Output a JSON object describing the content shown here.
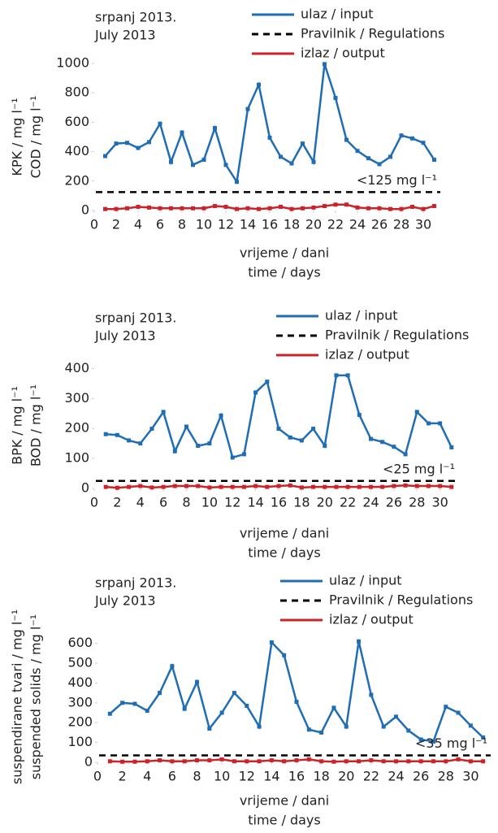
{
  "chart_data": [
    {
      "type": "line",
      "title": [
        "srpanj 2013.",
        "July 2013"
      ],
      "ylabel": [
        "KPK / mg l⁻¹",
        "COD / mg l⁻¹"
      ],
      "xlabel": [
        "vrijeme / dani",
        "time / days"
      ],
      "x": [
        1,
        2,
        3,
        4,
        5,
        6,
        7,
        8,
        9,
        10,
        11,
        12,
        13,
        14,
        15,
        16,
        17,
        18,
        19,
        20,
        21,
        22,
        23,
        24,
        25,
        26,
        27,
        28,
        29,
        30,
        31
      ],
      "xlim": [
        0,
        32
      ],
      "xticks": [
        0,
        2,
        4,
        6,
        8,
        10,
        12,
        14,
        16,
        18,
        20,
        22,
        24,
        26,
        28,
        30
      ],
      "ylim": [
        0,
        1000
      ],
      "yticks": [
        0,
        200,
        400,
        600,
        800,
        1000
      ],
      "series": [
        {
          "name": "ulaz / input",
          "color": "#1f6db5",
          "values": [
            370,
            455,
            460,
            425,
            465,
            590,
            330,
            530,
            310,
            345,
            560,
            310,
            195,
            690,
            855,
            495,
            365,
            320,
            455,
            330,
            995,
            765,
            480,
            405,
            355,
            315,
            365,
            510,
            490,
            460,
            345
          ]
        },
        {
          "name": "Pravilnik / Regulations",
          "color": "#000000",
          "dashed": true,
          "hline": 125,
          "annotation": "<125 mg l⁻¹"
        },
        {
          "name": "izlaz / output",
          "color": "#cc2229",
          "values": [
            10,
            10,
            15,
            25,
            20,
            15,
            15,
            15,
            15,
            15,
            30,
            25,
            10,
            15,
            10,
            15,
            25,
            10,
            15,
            20,
            30,
            40,
            40,
            20,
            15,
            15,
            10,
            10,
            25,
            10,
            30
          ]
        }
      ]
    },
    {
      "type": "line",
      "title": [
        "srpanj 2013.",
        "July 2013"
      ],
      "ylabel": [
        "BPK / mg l⁻¹",
        "BOD / mg l⁻¹"
      ],
      "xlabel": [
        "vrijeme / dani",
        "time / days"
      ],
      "x": [
        1,
        2,
        3,
        4,
        5,
        6,
        7,
        8,
        9,
        10,
        11,
        12,
        13,
        14,
        15,
        16,
        17,
        18,
        19,
        20,
        21,
        22,
        23,
        24,
        25,
        26,
        27,
        28,
        29,
        30,
        31
      ],
      "xlim": [
        0,
        32
      ],
      "xticks": [
        0,
        2,
        4,
        6,
        8,
        10,
        12,
        14,
        16,
        18,
        20,
        22,
        24,
        26,
        28,
        30
      ],
      "ylim": [
        0,
        420
      ],
      "yticks": [
        0,
        100,
        200,
        300,
        400
      ],
      "series": [
        {
          "name": "ulaz / input",
          "color": "#1f6db5",
          "values": [
            181,
            178,
            160,
            150,
            199,
            255,
            124,
            206,
            142,
            150,
            243,
            103,
            114,
            320,
            356,
            199,
            170,
            160,
            199,
            142,
            377,
            377,
            245,
            165,
            155,
            139,
            114,
            255,
            217,
            217,
            137
          ]
        },
        {
          "name": "Pravilnik / Regulations",
          "color": "#000000",
          "dashed": true,
          "hline": 25,
          "annotation": "<25 mg l⁻¹"
        },
        {
          "name": "izlaz / output",
          "color": "#cc2229",
          "values": [
            5,
            2,
            5,
            8,
            3,
            5,
            8,
            8,
            8,
            3,
            5,
            5,
            5,
            8,
            5,
            8,
            10,
            3,
            5,
            5,
            5,
            5,
            5,
            5,
            5,
            8,
            10,
            8,
            8,
            8,
            5
          ]
        }
      ]
    },
    {
      "type": "line",
      "title": [
        "srpanj 2013.",
        "July 2013"
      ],
      "ylabel": [
        "suspendirane tvari / mg l⁻¹",
        "suspended solids / mg l⁻¹"
      ],
      "xlabel": [
        "vrijeme / dani",
        "time / days"
      ],
      "x": [
        1,
        2,
        3,
        4,
        5,
        6,
        7,
        8,
        9,
        10,
        11,
        12,
        13,
        14,
        15,
        16,
        17,
        18,
        19,
        20,
        21,
        22,
        23,
        24,
        25,
        26,
        27,
        28,
        29,
        30,
        31
      ],
      "xlim": [
        0,
        32
      ],
      "xticks": [
        0,
        2,
        4,
        6,
        8,
        10,
        12,
        14,
        16,
        18,
        20,
        22,
        24,
        26,
        28,
        30
      ],
      "ylim": [
        0,
        660
      ],
      "yticks": [
        0,
        100,
        200,
        300,
        400,
        500,
        600
      ],
      "series": [
        {
          "name": "ulaz / input",
          "color": "#1f6db5",
          "values": [
            245,
            300,
            295,
            260,
            350,
            485,
            270,
            405,
            170,
            250,
            350,
            285,
            180,
            605,
            540,
            305,
            165,
            150,
            275,
            180,
            610,
            340,
            180,
            230,
            160,
            115,
            105,
            280,
            250,
            185,
            125
          ]
        },
        {
          "name": "Pravilnik / Regulations",
          "color": "#000000",
          "dashed": true,
          "hline": 35,
          "annotation": "<35 mg l⁻¹"
        },
        {
          "name": "izlaz / output",
          "color": "#cc2229",
          "values": [
            5,
            3,
            3,
            5,
            10,
            5,
            5,
            10,
            10,
            15,
            5,
            5,
            5,
            10,
            5,
            10,
            15,
            5,
            3,
            5,
            5,
            10,
            5,
            5,
            5,
            5,
            5,
            5,
            15,
            5,
            5
          ]
        }
      ]
    }
  ]
}
